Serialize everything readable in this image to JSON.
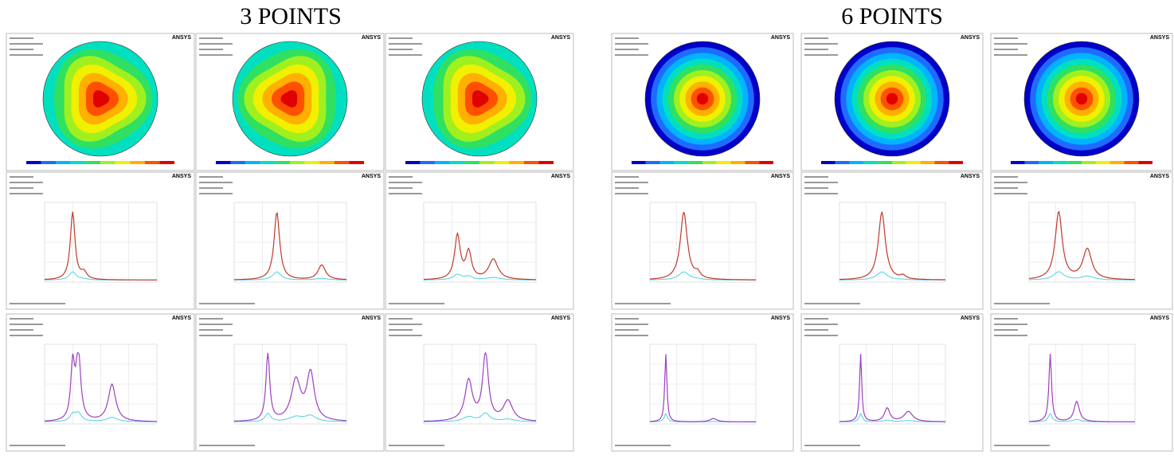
{
  "groups": [
    {
      "title": "3 POINTS"
    },
    {
      "title": "6 POINTS"
    }
  ],
  "panel_logo": "ANSYS"
}
